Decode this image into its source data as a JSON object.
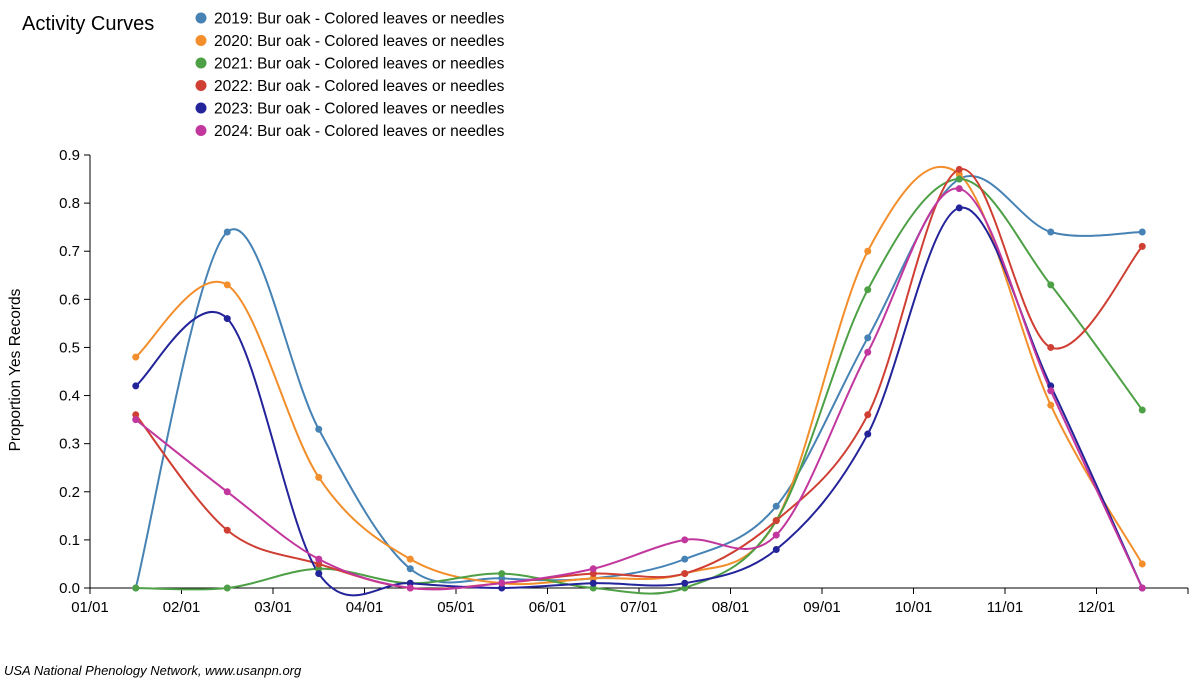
{
  "chart_data": {
    "type": "line",
    "title": "Activity Curves",
    "ylabel": "Proportion Yes Records",
    "xlabel": "",
    "credit": "USA National Phenology Network, www.usanpn.org",
    "ylim": [
      0,
      0.9
    ],
    "xlim_months": [
      0,
      12
    ],
    "x_tick_labels": [
      "01/01",
      "02/01",
      "03/01",
      "04/01",
      "05/01",
      "06/01",
      "07/01",
      "08/01",
      "09/01",
      "10/01",
      "11/01",
      "12/01"
    ],
    "y_tick_labels": [
      "0.0",
      "0.1",
      "0.2",
      "0.3",
      "0.4",
      "0.5",
      "0.6",
      "0.7",
      "0.8",
      "0.9"
    ],
    "y_tick_values": [
      0,
      0.1,
      0.2,
      0.3,
      0.4,
      0.5,
      0.6,
      0.7,
      0.8,
      0.9
    ],
    "x_points_month": [
      0.5,
      1.5,
      2.5,
      3.5,
      4.5,
      5.5,
      6.5,
      7.5,
      8.5,
      9.5,
      10.5,
      11.5
    ],
    "legend_position": "top",
    "grid": false,
    "series": [
      {
        "name": "2019: Bur oak - Colored leaves or needles",
        "color": "#4682b4",
        "values": [
          0.0,
          0.74,
          0.33,
          0.04,
          0.02,
          0.02,
          0.06,
          0.17,
          0.52,
          0.85,
          0.74,
          0.74
        ]
      },
      {
        "name": "2020: Bur oak - Colored leaves or needles",
        "color": "#f28e2b",
        "values": [
          0.48,
          0.63,
          0.23,
          0.06,
          0.01,
          0.02,
          0.03,
          0.14,
          0.7,
          0.86,
          0.38,
          0.05
        ]
      },
      {
        "name": "2021: Bur oak - Colored leaves or needles",
        "color": "#4ea046",
        "values": [
          0.0,
          0.0,
          0.04,
          0.01,
          0.03,
          0.0,
          0.0,
          0.14,
          0.62,
          0.85,
          0.63,
          0.37
        ]
      },
      {
        "name": "2022: Bur oak - Colored leaves or needles",
        "color": "#cf3f33",
        "values": [
          0.36,
          0.12,
          0.05,
          0.0,
          0.01,
          0.03,
          0.03,
          0.14,
          0.36,
          0.87,
          0.5,
          0.71
        ]
      },
      {
        "name": "2023: Bur oak - Colored leaves or needles",
        "color": "#23239a",
        "values": [
          0.42,
          0.56,
          0.03,
          0.01,
          0.0,
          0.01,
          0.01,
          0.08,
          0.32,
          0.79,
          0.42,
          0.0
        ]
      },
      {
        "name": "2024: Bur oak - Colored leaves or needles",
        "color": "#c2379e",
        "values": [
          0.35,
          0.2,
          0.06,
          0.0,
          0.01,
          0.04,
          0.1,
          0.11,
          0.49,
          0.83,
          0.41,
          0.0
        ]
      }
    ]
  }
}
